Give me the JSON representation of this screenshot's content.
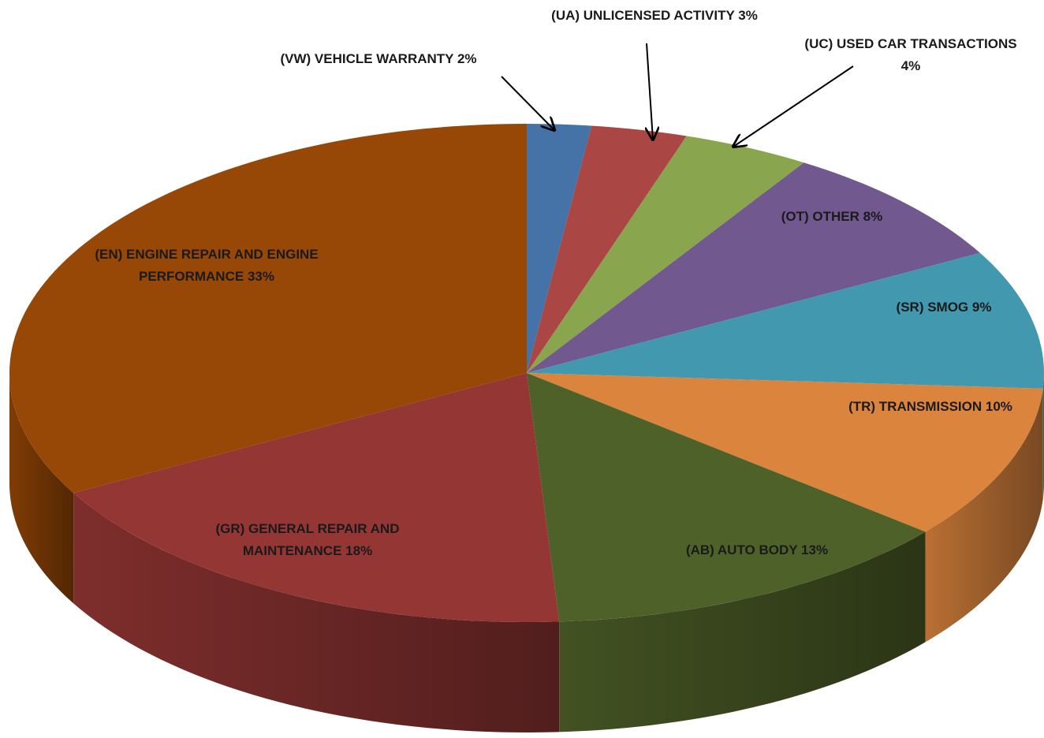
{
  "chart_data": {
    "type": "pie",
    "categories": [
      "(VW) VEHICLE WARRANTY",
      "(UA) UNLICENSED ACTIVITY",
      "(UC) USED CAR TRANSACTIONS",
      "(OT) OTHER",
      "(SR) SMOG",
      "(TR) TRANSMISSION",
      "(AB) AUTO BODY",
      "(GR) GENERAL REPAIR AND MAINTENANCE",
      "(EN) ENGINE REPAIR AND ENGINE PERFORMANCE"
    ],
    "values": [
      2,
      3,
      4,
      8,
      9,
      10,
      13,
      18,
      33
    ],
    "value_labels": [
      "2%",
      "3%",
      "4%",
      "8%",
      "9%",
      "10%",
      "13%",
      "18%",
      "33%"
    ],
    "colors": [
      "#4572a7",
      "#aa4643",
      "#89a54e",
      "#71588f",
      "#4198af",
      "#db843d",
      "#4e6128",
      "#943634",
      "#974706"
    ]
  }
}
